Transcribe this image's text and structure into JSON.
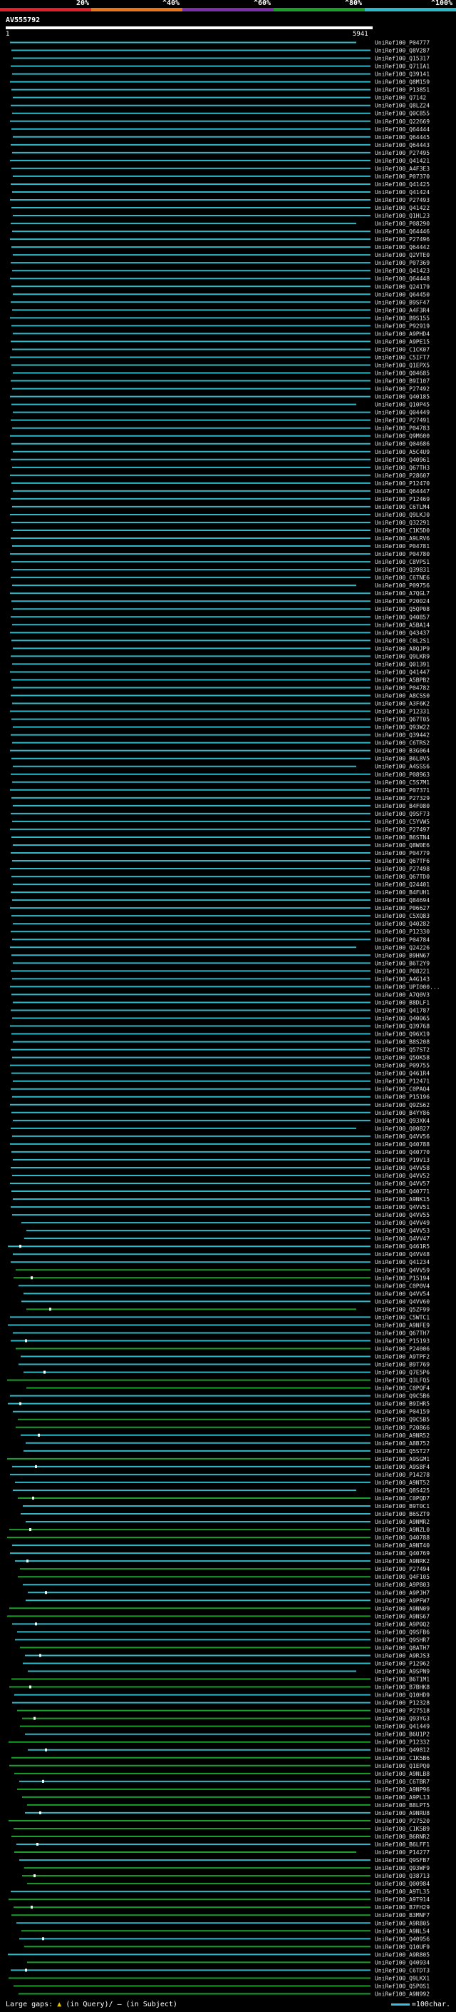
{
  "scale": {
    "labels": [
      "20%",
      "^40%",
      "^60%",
      "^80%",
      "^100%"
    ],
    "colors": [
      "#e0202a",
      "#e8741c",
      "#7b2fa8",
      "#1aa02a",
      "#2fb8c8"
    ]
  },
  "query": {
    "name": "AV555792",
    "start": "1",
    "end": "5941"
  },
  "footer": {
    "legend": "Large gaps:",
    "query_gap": "(in Query)/",
    "subject_gap": "(in Subject)",
    "scale_note": "=100char."
  },
  "chart_data": {
    "type": "alignment-overview",
    "query_length": 5941,
    "hits": [
      "UniRef100_P04777",
      "UniRef100_Q8V287",
      "UniRef100_Q15317",
      "UniRef100_Q71IA1",
      "UniRef100_Q39141",
      "UniRef100_Q8M159",
      "UniRef100_P13851",
      "UniRef100_Q7142",
      "UniRef100_Q8LZ24",
      "UniRef100_Q0C855",
      "UniRef100_Q22669",
      "UniRef100_Q64444",
      "UniRef100_Q64445",
      "UniRef100_Q64443",
      "UniRef100_P27495",
      "UniRef100_Q41421",
      "UniRef100_A4F3E3",
      "UniRef100_P07370",
      "UniRef100_Q41425",
      "UniRef100_Q41424",
      "UniRef100_P27493",
      "UniRef100_Q41422",
      "UniRef100_Q1HL23",
      "UniRef100_P08290",
      "UniRef100_Q64446",
      "UniRef100_P27496",
      "UniRef100_Q64442",
      "UniRef100_Q2VTE0",
      "UniRef100_P07369",
      "UniRef100_Q41423",
      "UniRef100_Q64448",
      "UniRef100_Q24179",
      "UniRef100_Q64450",
      "UniRef100_B9SF47",
      "UniRef100_A4F3R4",
      "UniRef100_B9S155",
      "UniRef100_P92919",
      "UniRef100_A9PHD4",
      "UniRef100_A9PE15",
      "UniRef100_C1CK07",
      "UniRef100_C5IFT7",
      "UniRef100_Q1EPX5",
      "UniRef100_Q04685",
      "UniRef100_B9I107",
      "UniRef100_P27492",
      "UniRef100_Q40185",
      "UniRef100_Q10P45",
      "UniRef100_Q04449",
      "UniRef100_P27491",
      "UniRef100_P04783",
      "UniRef100_Q9M600",
      "UniRef100_Q04686",
      "UniRef100_A5C4U9",
      "UniRef100_Q40961",
      "UniRef100_Q67TH3",
      "UniRef100_P28607",
      "UniRef100_P12470",
      "UniRef100_Q64447",
      "UniRef100_P12469",
      "UniRef100_C6TLM4",
      "UniRef100_Q9LKJ0",
      "UniRef100_Q32291",
      "UniRef100_C1K5D0",
      "UniRef100_A9LRV6",
      "UniRef100_P04781",
      "UniRef100_P04780",
      "UniRef100_C8VPS1",
      "UniRef100_Q39831",
      "UniRef100_C6TNE6",
      "UniRef100_P09756",
      "UniRef100_A7QGL7",
      "UniRef100_P20024",
      "UniRef100_Q5QP08",
      "UniRef100_Q40857",
      "UniRef100_A5BA14",
      "UniRef100_Q43437",
      "UniRef100_C0L2S1",
      "UniRef100_A8QJP9",
      "UniRef100_Q9LKR9",
      "UniRef100_Q01391",
      "UniRef100_Q41447",
      "UniRef100_A5BPB2",
      "UniRef100_P04782",
      "UniRef100_A8CSS0",
      "UniRef100_A3F6K2",
      "UniRef100_P12331",
      "UniRef100_Q67T05",
      "UniRef100_Q93W22",
      "UniRef100_Q39442",
      "UniRef100_C6TRS2",
      "UniRef100_B3G064",
      "UniRef100_B6L8V5",
      "UniRef100_A4SSS6",
      "UniRef100_P08963",
      "UniRef100_C5S7M1",
      "UniRef100_P07371",
      "UniRef100_P27329",
      "UniRef100_B4F080",
      "UniRef100_Q9SF73",
      "UniRef100_C5YVW5",
      "UniRef100_P27497",
      "UniRef100_B6STN4",
      "UniRef100_Q8W0E6",
      "UniRef100_P04779",
      "UniRef100_Q67TF6",
      "UniRef100_P27498",
      "UniRef100_Q67TD0",
      "UniRef100_Q24401",
      "UniRef100_B4FUH1",
      "UniRef100_Q84694",
      "UniRef100_P06627",
      "UniRef100_C5XQ83",
      "UniRef100_Q40282",
      "UniRef100_P12330",
      "UniRef100_P04784",
      "UniRef100_Q24226",
      "UniRef100_B9HN67",
      "UniRef100_B6T2Y9",
      "UniRef100_P08221",
      "UniRef100_A4G143",
      "UniRef100_UPI000...",
      "UniRef100_A7Q0V3",
      "UniRef100_B8DLF1",
      "UniRef100_Q41787",
      "UniRef100_Q40065",
      "UniRef100_Q39768",
      "UniRef100_Q96X19",
      "UniRef100_B8S208",
      "UniRef100_Q57ST2",
      "UniRef100_Q5OK58",
      "UniRef100_P09755",
      "UniRef100_Q461R4",
      "UniRef100_P12471",
      "UniRef100_C0PAQ4",
      "UniRef100_P15196",
      "UniRef100_Q9ZS62",
      "UniRef100_B4YY86",
      "UniRef100_Q93XK4",
      "UniRef100_Q00827",
      "UniRef100_Q4VV56",
      "UniRef100_Q40788",
      "UniRef100_Q40770",
      "UniRef100_P19V13",
      "UniRef100_Q4VV58",
      "UniRef100_Q4VV52",
      "UniRef100_Q4VV57",
      "UniRef100_Q40771",
      "UniRef100_A9NK15",
      "UniRef100_Q4VV51",
      "UniRef100_Q4VV55",
      "UniRef100_Q4VV49",
      "UniRef100_Q4VV53",
      "UniRef100_Q4VV47",
      "UniRef100_Q461R5",
      "UniRef100_Q4VV48",
      "UniRef100_Q41234",
      "UniRef100_Q4VV59",
      "UniRef100_P15194",
      "UniRef100_C0P0V4",
      "UniRef100_Q4VV54",
      "UniRef100_Q4VV60",
      "UniRef100_Q5ZF99",
      "UniRef100_C5WTC1",
      "UniRef100_A9NFE9",
      "UniRef100_Q67TH7",
      "UniRef100_P15193",
      "UniRef100_P24006",
      "UniRef100_A9TPF2",
      "UniRef100_B9T769",
      "UniRef100_Q7E5P6",
      "UniRef100_Q3LFQ5",
      "UniRef100_C0PQF4",
      "UniRef100_Q9C5B6",
      "UniRef100_B9IHR5",
      "UniRef100_P04159",
      "UniRef100_Q9C5B5",
      "UniRef100_P20866",
      "UniRef100_A9NR52",
      "UniRef100_A8B752",
      "UniRef100_Q5ST27",
      "UniRef100_A9SGM1",
      "UniRef100_A9S8F4",
      "UniRef100_P14278",
      "UniRef100_A9NT52",
      "UniRef100_Q8S425",
      "UniRef100_C0PQD7",
      "UniRef100_B9T0C1",
      "UniRef100_B6SZT9",
      "UniRef100_A9NMR2",
      "UniRef100_A9NZL0",
      "UniRef100_Q40788",
      "UniRef100_A9NT40",
      "UniRef100_Q40769",
      "UniRef100_A9NRK2",
      "UniRef100_P27494",
      "UniRef100_Q4F105",
      "UniRef100_A9P803",
      "UniRef100_A9PJH7",
      "UniRef100_A9PFW7",
      "UniRef100_A9NN09",
      "UniRef100_A9NS67",
      "UniRef100_A9P0Q2",
      "UniRef100_Q9SFB6",
      "UniRef100_Q9SHR7",
      "UniRef100_Q8ATH7",
      "UniRef100_A9RJS3",
      "UniRef100_P12962",
      "UniRef100_A9SPN9",
      "UniRef100_B6T1M1",
      "UniRef100_B7BHK8",
      "UniRef100_Q10HD9",
      "UniRef100_P12328",
      "UniRef100_P27518",
      "UniRef100_Q93YG3",
      "UniRef100_Q41449",
      "UniRef100_B6U1P2",
      "UniRef100_P12332",
      "UniRef100_Q49812",
      "UniRef100_C1K5B6",
      "UniRef100_Q1EPQ0",
      "UniRef100_A9NLB8",
      "UniRef100_C6TBR7",
      "UniRef100_A9NP96",
      "UniRef100_A9PL13",
      "UniRef100_B8LPT5",
      "UniRef100_A9NRU8",
      "UniRef100_P27520",
      "UniRef100_C1K5B9",
      "UniRef100_B6RNR2",
      "UniRef100_B6LFF1",
      "UniRef100_P14277",
      "UniRef100_Q9SFB7",
      "UniRef100_Q93WF9",
      "UniRef100_Q38713",
      "UniRef100_Q00984",
      "UniRef100_A9TL35",
      "UniRef100_A9T914",
      "UniRef100_B7FH29",
      "UniRef100_B3MNF7",
      "UniRef100_A9R805",
      "UniRef100_A9NL54",
      "UniRef100_Q40956",
      "UniRef100_Q10UF9",
      "UniRef100_A9R805",
      "UniRef100_Q40934",
      "UniRef100_C6TDT3",
      "UniRef100_Q9LKX1",
      "UniRef100_Q5P0S1",
      "UniRef100_A9N992"
    ]
  }
}
